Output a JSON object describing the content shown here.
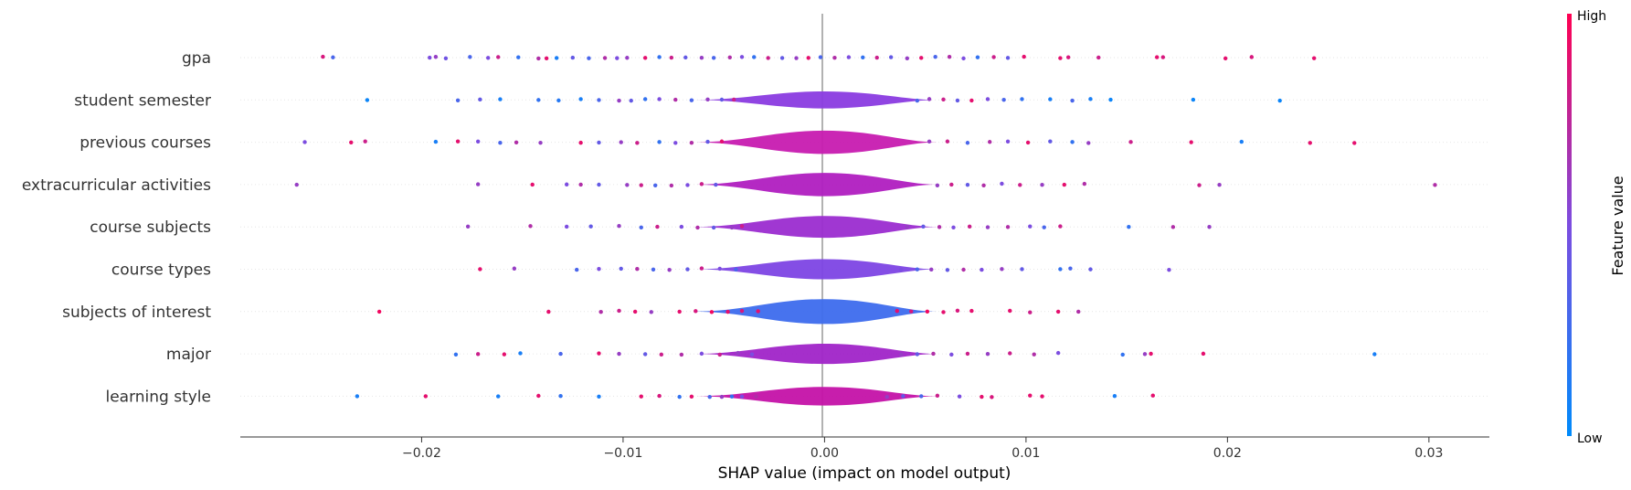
{
  "chart_data": {
    "type": "violin",
    "xlabel": "SHAP value (impact on model output)",
    "xlim": [
      -0.029,
      0.033
    ],
    "xticks": [
      -0.02,
      -0.01,
      0.0,
      0.01,
      0.02,
      0.03
    ],
    "xtick_labels": [
      "−0.02",
      "−0.01",
      "0.00",
      "0.01",
      "0.02",
      "0.03"
    ],
    "colorbar": {
      "title": "Feature value",
      "high_label": "High",
      "low_label": "Low",
      "low_color": "#008bfb",
      "high_color": "#ff0052"
    },
    "features": [
      {
        "name": "gpa",
        "body_color": "#ff0052",
        "dot_color": "mixed",
        "width": 0.0,
        "points": [
          [
            -0.0249,
            0.85
          ],
          [
            -0.0244,
            0.3
          ],
          [
            -0.0196,
            0.5
          ],
          [
            -0.0193,
            0.6
          ],
          [
            -0.0188,
            0.45
          ],
          [
            -0.0176,
            0.3
          ],
          [
            -0.0167,
            0.5
          ],
          [
            -0.0162,
            0.8
          ],
          [
            -0.0152,
            0.2
          ],
          [
            -0.0142,
            0.7
          ],
          [
            -0.0138,
            0.9
          ],
          [
            -0.0133,
            0.1
          ],
          [
            -0.0125,
            0.4
          ],
          [
            -0.0117,
            0.3
          ],
          [
            -0.0109,
            0.7
          ],
          [
            -0.0103,
            0.5
          ],
          [
            -0.0098,
            0.6
          ],
          [
            -0.0089,
            0.9
          ],
          [
            -0.0082,
            0.2
          ],
          [
            -0.0076,
            0.8
          ],
          [
            -0.0069,
            0.4
          ],
          [
            -0.0061,
            0.6
          ],
          [
            -0.0055,
            0.3
          ],
          [
            -0.0047,
            0.7
          ],
          [
            -0.0041,
            0.5
          ],
          [
            -0.0035,
            0.2
          ],
          [
            -0.0028,
            0.8
          ],
          [
            -0.0021,
            0.4
          ],
          [
            -0.0014,
            0.6
          ],
          [
            -0.0008,
            0.9
          ],
          [
            -0.0002,
            0.3
          ],
          [
            0.0005,
            0.7
          ],
          [
            0.0012,
            0.5
          ],
          [
            0.0019,
            0.2
          ],
          [
            0.0026,
            0.8
          ],
          [
            0.0033,
            0.4
          ],
          [
            0.0041,
            0.6
          ],
          [
            0.0048,
            0.9
          ],
          [
            0.0055,
            0.3
          ],
          [
            0.0062,
            0.7
          ],
          [
            0.0069,
            0.5
          ],
          [
            0.0076,
            0.2
          ],
          [
            0.0084,
            0.8
          ],
          [
            0.0091,
            0.4
          ],
          [
            0.0099,
            0.9
          ],
          [
            0.0117,
            0.9
          ],
          [
            0.0121,
            0.85
          ],
          [
            0.0136,
            0.8
          ],
          [
            0.0165,
            0.9
          ],
          [
            0.0168,
            0.85
          ],
          [
            0.0199,
            0.9
          ],
          [
            0.0212,
            0.85
          ],
          [
            0.0243,
            0.9
          ]
        ]
      },
      {
        "name": "student semester",
        "body_color": "#8a3be0",
        "width": 0.55,
        "points": [
          [
            -0.0227,
            0.05
          ],
          [
            -0.0182,
            0.3
          ],
          [
            -0.0171,
            0.4
          ],
          [
            -0.0161,
            0.1
          ],
          [
            -0.0142,
            0.2
          ],
          [
            -0.0132,
            0.15
          ],
          [
            -0.0121,
            0.1
          ],
          [
            -0.0112,
            0.3
          ],
          [
            -0.0102,
            0.6
          ],
          [
            -0.0096,
            0.4
          ],
          [
            -0.0089,
            0.2
          ],
          [
            -0.0082,
            0.5
          ],
          [
            -0.0074,
            0.7
          ],
          [
            -0.0066,
            0.3
          ],
          [
            -0.0058,
            0.6
          ],
          [
            -0.0051,
            0.4
          ],
          [
            -0.0045,
            0.8
          ],
          [
            0.0046,
            0.3
          ],
          [
            0.0052,
            0.6
          ],
          [
            0.0059,
            0.8
          ],
          [
            0.0066,
            0.4
          ],
          [
            0.0073,
            0.9
          ],
          [
            0.0081,
            0.5
          ],
          [
            0.0089,
            0.3
          ],
          [
            0.0098,
            0.2
          ],
          [
            0.0112,
            0.1
          ],
          [
            0.0123,
            0.3
          ],
          [
            0.0132,
            0.1
          ],
          [
            0.0142,
            0.05
          ],
          [
            0.0183,
            0.05
          ],
          [
            0.0226,
            0.05
          ]
        ]
      },
      {
        "name": "previous courses",
        "body_color": "#c71bb0",
        "width": 0.75,
        "points": [
          [
            -0.0258,
            0.5
          ],
          [
            -0.0235,
            0.9
          ],
          [
            -0.0228,
            0.8
          ],
          [
            -0.0193,
            0.1
          ],
          [
            -0.0182,
            0.9
          ],
          [
            -0.0172,
            0.5
          ],
          [
            -0.0161,
            0.3
          ],
          [
            -0.0153,
            0.7
          ],
          [
            -0.0141,
            0.6
          ],
          [
            -0.0121,
            0.9
          ],
          [
            -0.0112,
            0.4
          ],
          [
            -0.0101,
            0.6
          ],
          [
            -0.0093,
            0.8
          ],
          [
            -0.0082,
            0.2
          ],
          [
            -0.0074,
            0.5
          ],
          [
            -0.0066,
            0.7
          ],
          [
            -0.0058,
            0.4
          ],
          [
            -0.0051,
            0.9
          ],
          [
            0.0052,
            0.6
          ],
          [
            0.0061,
            0.8
          ],
          [
            0.0071,
            0.3
          ],
          [
            0.0082,
            0.7
          ],
          [
            0.0091,
            0.5
          ],
          [
            0.0101,
            0.9
          ],
          [
            0.0112,
            0.4
          ],
          [
            0.0123,
            0.2
          ],
          [
            0.0131,
            0.6
          ],
          [
            0.0152,
            0.8
          ],
          [
            0.0182,
            0.9
          ],
          [
            0.0207,
            0.1
          ],
          [
            0.0241,
            0.9
          ],
          [
            0.0263,
            0.9
          ]
        ]
      },
      {
        "name": "extracurricular activities",
        "body_color": "#b01ec0",
        "width": 0.75,
        "points": [
          [
            -0.0262,
            0.6
          ],
          [
            -0.0172,
            0.6
          ],
          [
            -0.0145,
            0.9
          ],
          [
            -0.0128,
            0.5
          ],
          [
            -0.0121,
            0.7
          ],
          [
            -0.0112,
            0.4
          ],
          [
            -0.0098,
            0.6
          ],
          [
            -0.0091,
            0.8
          ],
          [
            -0.0084,
            0.3
          ],
          [
            -0.0076,
            0.7
          ],
          [
            -0.0068,
            0.5
          ],
          [
            -0.0061,
            0.8
          ],
          [
            -0.0054,
            0.4
          ],
          [
            0.0056,
            0.6
          ],
          [
            0.0063,
            0.8
          ],
          [
            0.0071,
            0.4
          ],
          [
            0.0079,
            0.7
          ],
          [
            0.0088,
            0.5
          ],
          [
            0.0097,
            0.8
          ],
          [
            0.0108,
            0.6
          ],
          [
            0.0119,
            0.9
          ],
          [
            0.0129,
            0.7
          ],
          [
            0.0186,
            0.8
          ],
          [
            0.0196,
            0.6
          ],
          [
            0.0303,
            0.7
          ]
        ]
      },
      {
        "name": "course subjects",
        "body_color": "#9b2cd0",
        "width": 0.7,
        "points": [
          [
            -0.0177,
            0.6
          ],
          [
            -0.0146,
            0.7
          ],
          [
            -0.0128,
            0.5
          ],
          [
            -0.0116,
            0.4
          ],
          [
            -0.0102,
            0.6
          ],
          [
            -0.0091,
            0.3
          ],
          [
            -0.0083,
            0.8
          ],
          [
            -0.0071,
            0.5
          ],
          [
            -0.0063,
            0.7
          ],
          [
            -0.0055,
            0.4
          ],
          [
            -0.0046,
            0.6
          ],
          [
            -0.0041,
            0.8
          ],
          [
            0.0041,
            0.6
          ],
          [
            0.0049,
            0.4
          ],
          [
            0.0057,
            0.7
          ],
          [
            0.0064,
            0.5
          ],
          [
            0.0072,
            0.8
          ],
          [
            0.0081,
            0.6
          ],
          [
            0.0091,
            0.7
          ],
          [
            0.0102,
            0.5
          ],
          [
            0.0109,
            0.3
          ],
          [
            0.0117,
            0.8
          ],
          [
            0.0151,
            0.2
          ],
          [
            0.0173,
            0.7
          ],
          [
            0.0191,
            0.6
          ]
        ]
      },
      {
        "name": "course types",
        "body_color": "#7d45e4",
        "width": 0.65,
        "points": [
          [
            -0.0171,
            0.9
          ],
          [
            -0.0154,
            0.6
          ],
          [
            -0.0123,
            0.3
          ],
          [
            -0.0112,
            0.5
          ],
          [
            -0.0101,
            0.4
          ],
          [
            -0.0093,
            0.7
          ],
          [
            -0.0085,
            0.3
          ],
          [
            -0.0077,
            0.6
          ],
          [
            -0.0068,
            0.4
          ],
          [
            -0.0061,
            0.8
          ],
          [
            -0.0052,
            0.5
          ],
          [
            -0.0044,
            0.3
          ],
          [
            0.0038,
            0.5
          ],
          [
            0.0046,
            0.3
          ],
          [
            0.0053,
            0.6
          ],
          [
            0.0061,
            0.4
          ],
          [
            0.0069,
            0.7
          ],
          [
            0.0078,
            0.5
          ],
          [
            0.0088,
            0.6
          ],
          [
            0.0098,
            0.4
          ],
          [
            0.0117,
            0.2
          ],
          [
            0.0122,
            0.3
          ],
          [
            0.0132,
            0.4
          ],
          [
            0.0171,
            0.5
          ]
        ]
      },
      {
        "name": "subjects of interest",
        "body_color": "#3d6bed",
        "width": 0.8,
        "points": [
          [
            -0.0221,
            0.95
          ],
          [
            -0.0137,
            0.9
          ],
          [
            -0.0111,
            0.7
          ],
          [
            -0.0102,
            0.8
          ],
          [
            -0.0094,
            0.9
          ],
          [
            -0.0086,
            0.6
          ],
          [
            -0.0072,
            0.9
          ],
          [
            -0.0064,
            0.85
          ],
          [
            -0.0056,
            0.95
          ],
          [
            -0.0048,
            0.9
          ],
          [
            -0.0041,
            0.85
          ],
          [
            -0.0033,
            0.9
          ],
          [
            0.0036,
            0.9
          ],
          [
            0.0043,
            0.85
          ],
          [
            0.0051,
            0.95
          ],
          [
            0.0059,
            0.9
          ],
          [
            0.0066,
            0.85
          ],
          [
            0.0073,
            0.9
          ],
          [
            0.0092,
            0.9
          ],
          [
            0.0102,
            0.8
          ],
          [
            0.0116,
            0.9
          ],
          [
            0.0126,
            0.7
          ]
        ]
      },
      {
        "name": "major",
        "body_color": "#a024c8",
        "width": 0.65,
        "points": [
          [
            -0.0183,
            0.2
          ],
          [
            -0.0172,
            0.8
          ],
          [
            -0.0159,
            0.9
          ],
          [
            -0.0151,
            0.1
          ],
          [
            -0.0131,
            0.3
          ],
          [
            -0.0112,
            0.9
          ],
          [
            -0.0102,
            0.6
          ],
          [
            -0.0089,
            0.4
          ],
          [
            -0.0081,
            0.8
          ],
          [
            -0.0071,
            0.7
          ],
          [
            -0.0061,
            0.5
          ],
          [
            -0.0052,
            0.8
          ],
          [
            -0.0043,
            0.6
          ],
          [
            -0.0036,
            0.5
          ],
          [
            0.0038,
            0.6
          ],
          [
            0.0046,
            0.4
          ],
          [
            0.0054,
            0.7
          ],
          [
            0.0063,
            0.5
          ],
          [
            0.0071,
            0.8
          ],
          [
            0.0081,
            0.6
          ],
          [
            0.0092,
            0.8
          ],
          [
            0.0104,
            0.7
          ],
          [
            0.0116,
            0.5
          ],
          [
            0.0148,
            0.2
          ],
          [
            0.0159,
            0.6
          ],
          [
            0.0162,
            0.9
          ],
          [
            0.0188,
            0.9
          ],
          [
            0.0273,
            0.1
          ]
        ]
      },
      {
        "name": "learning style",
        "body_color": "#c412a8",
        "width": 0.6,
        "points": [
          [
            -0.0232,
            0.1
          ],
          [
            -0.0198,
            0.9
          ],
          [
            -0.0162,
            0.1
          ],
          [
            -0.0142,
            0.9
          ],
          [
            -0.0131,
            0.2
          ],
          [
            -0.0112,
            0.1
          ],
          [
            -0.0091,
            0.9
          ],
          [
            -0.0082,
            0.85
          ],
          [
            -0.0072,
            0.2
          ],
          [
            -0.0066,
            0.9
          ],
          [
            -0.0057,
            0.3
          ],
          [
            -0.0051,
            0.6
          ],
          [
            -0.0046,
            0.2
          ],
          [
            -0.0041,
            0.5
          ],
          [
            -0.0034,
            0.7
          ],
          [
            0.0031,
            0.6
          ],
          [
            0.0039,
            0.4
          ],
          [
            0.0048,
            0.3
          ],
          [
            0.0056,
            0.8
          ],
          [
            0.0067,
            0.5
          ],
          [
            0.0078,
            0.9
          ],
          [
            0.0083,
            0.85
          ],
          [
            0.0102,
            0.9
          ],
          [
            0.0108,
            0.9
          ],
          [
            0.0144,
            0.1
          ],
          [
            0.0163,
            0.9
          ]
        ]
      }
    ]
  }
}
